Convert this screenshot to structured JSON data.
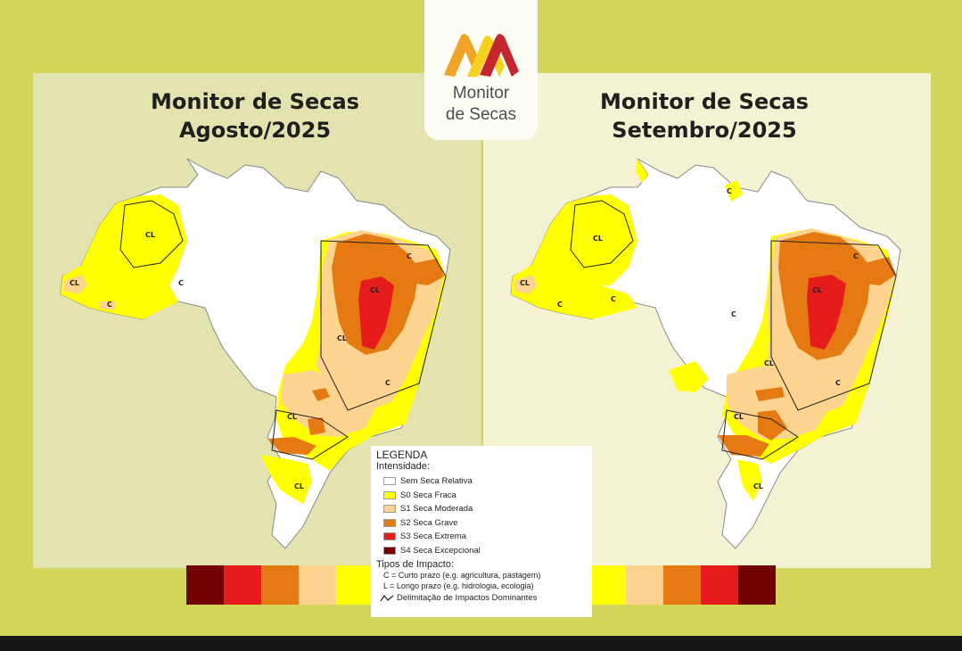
{
  "logo": {
    "line1": "Monitor",
    "line2": "de Secas"
  },
  "maps": [
    {
      "title_line1": "Monitor de Secas",
      "title_line2": "Agosto/2025"
    },
    {
      "title_line1": "Monitor de Secas",
      "title_line2": "Setembro/2025"
    }
  ],
  "impact_label": "CL",
  "impact_label_c": "C",
  "impact_label_l": "L",
  "legend": {
    "title": "LEGENDA",
    "intensity_heading": "Intensidade:",
    "categories": [
      {
        "label": "Sem Seca Relativa",
        "color": "#ffffff"
      },
      {
        "label": "S0 Seca Fraca",
        "color": "#ffff00"
      },
      {
        "label": "S1 Seca Moderada",
        "color": "#fcd38f"
      },
      {
        "label": "S2 Seca Grave",
        "color": "#e57a12"
      },
      {
        "label": "S3 Seca Extrema",
        "color": "#e61c1c"
      },
      {
        "label": "S4 Seca Excepcional",
        "color": "#730000"
      }
    ],
    "impact_heading": "Tipos de Impacto:",
    "impact_c": "C = Curto prazo (e.g. agricultura, pastagem)",
    "impact_l": "L = Longo prazo (e.g. hidrologia, ecologia)",
    "delimitation": "Delimitação de Impactos Dominantes"
  },
  "colors": {
    "background": "#d2d65c",
    "panel_left": "#e2e3af",
    "panel_right": "#f3f2d3",
    "s0": "#ffff00",
    "s1": "#fcd38f",
    "s2": "#e57a12",
    "s3": "#e61c1c",
    "s4": "#730000",
    "none": "#ffffff"
  },
  "scale_left": [
    "#730000",
    "#e61c1c",
    "#e57a12",
    "#fcd38f",
    "#ffff00"
  ],
  "scale_right": [
    "#ffff00",
    "#fcd38f",
    "#e57a12",
    "#e61c1c",
    "#730000"
  ]
}
